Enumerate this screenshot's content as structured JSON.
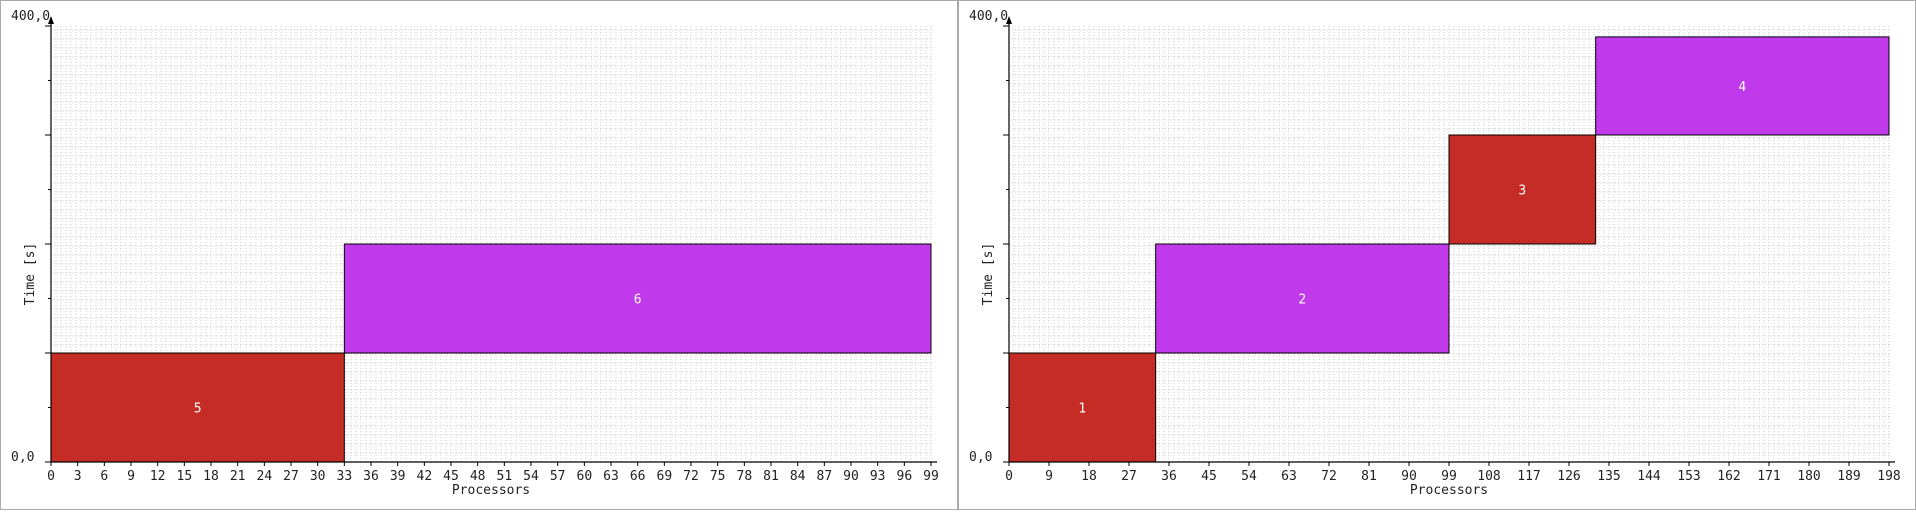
{
  "chart_data": [
    {
      "type": "gantt",
      "xlabel": "Processors",
      "ylabel": "Time [s]",
      "ylim": [
        0,
        400
      ],
      "y_tick_labels": [
        "0,0",
        "400,0"
      ],
      "x_max": 99,
      "x_tick_labels": [
        "0",
        "3",
        "6",
        "9",
        "12",
        "15",
        "18",
        "21",
        "24",
        "27",
        "30",
        "33",
        "36",
        "39",
        "42",
        "45",
        "48",
        "51",
        "54",
        "57",
        "60",
        "63",
        "66",
        "69",
        "72",
        "75",
        "78",
        "81",
        "84",
        "87",
        "90",
        "93",
        "96",
        "99"
      ],
      "grid": true,
      "jobs": [
        {
          "label": "5",
          "proc_start": 0,
          "proc_end": 33,
          "t_start": 0,
          "t_end": 100,
          "color": "#c52c25"
        },
        {
          "label": "6",
          "proc_start": 33,
          "proc_end": 99,
          "t_start": 100,
          "t_end": 200,
          "color": "#c03aec"
        }
      ]
    },
    {
      "type": "gantt",
      "xlabel": "Processors",
      "ylabel": "Time [s]",
      "ylim": [
        0,
        400
      ],
      "y_tick_labels": [
        "0,0",
        "400,0"
      ],
      "x_max": 198,
      "x_tick_labels": [
        "0",
        "9",
        "18",
        "27",
        "36",
        "45",
        "54",
        "63",
        "72",
        "81",
        "90",
        "99",
        "108",
        "117",
        "126",
        "135",
        "144",
        "153",
        "162",
        "171",
        "180",
        "189",
        "198"
      ],
      "grid": true,
      "jobs": [
        {
          "label": "1",
          "proc_start": 0,
          "proc_end": 33,
          "t_start": 0,
          "t_end": 100,
          "color": "#c52c25"
        },
        {
          "label": "2",
          "proc_start": 33,
          "proc_end": 99,
          "t_start": 100,
          "t_end": 200,
          "color": "#c03aec"
        },
        {
          "label": "3",
          "proc_start": 99,
          "proc_end": 132,
          "t_start": 200,
          "t_end": 300,
          "color": "#c52c25"
        },
        {
          "label": "4",
          "proc_start": 132,
          "proc_end": 198,
          "t_start": 300,
          "t_end": 390,
          "color": "#c03aec"
        }
      ]
    }
  ]
}
